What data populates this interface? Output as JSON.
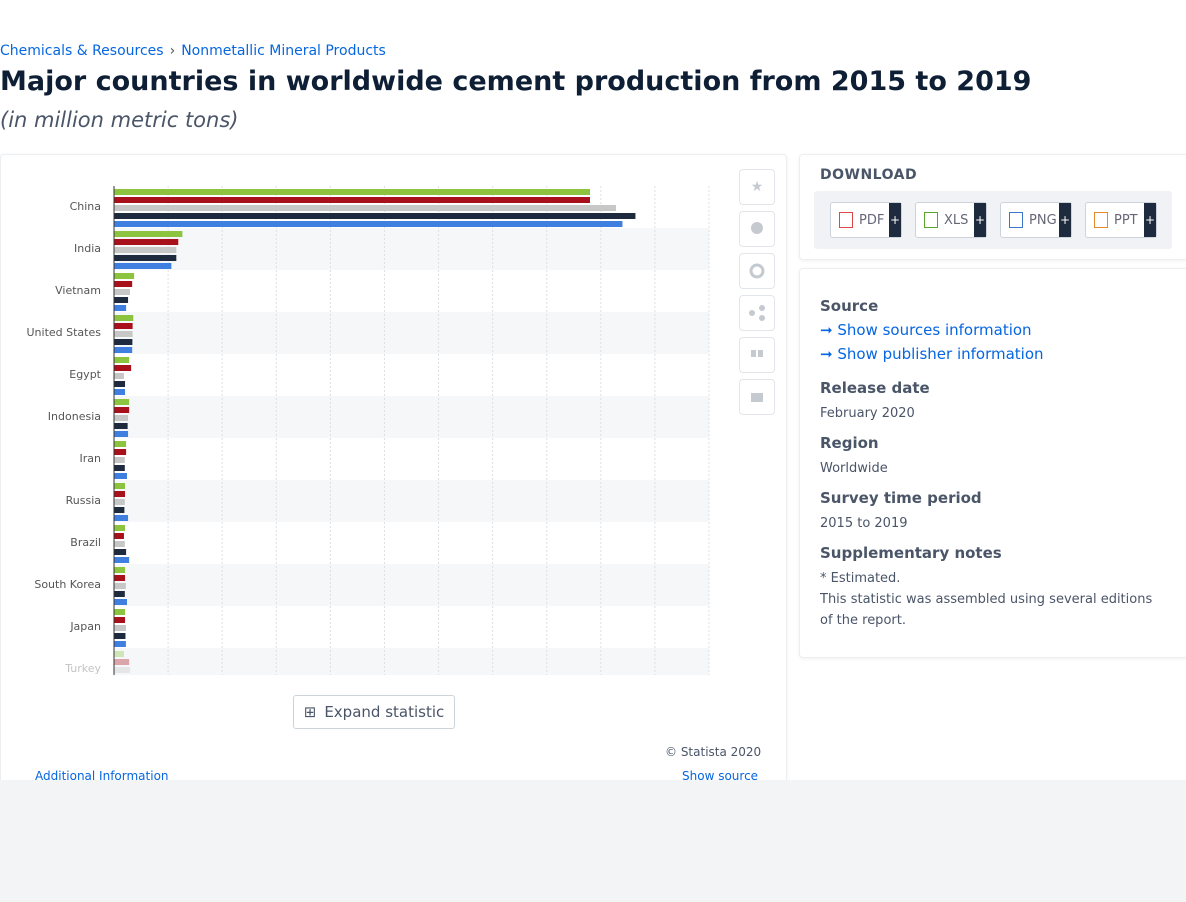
{
  "breadcrumb": [
    "Chemicals & Resources",
    "Nonmetallic Mineral Products"
  ],
  "title": "Major countries in worldwide cement production from 2015 to 2019",
  "subtitle": "(in million metric tons)",
  "chart_data": {
    "type": "bar",
    "orientation": "horizontal",
    "categories": [
      "China",
      "India",
      "Vietnam",
      "United States",
      "Egypt",
      "Indonesia",
      "Iran",
      "Russia",
      "Brazil",
      "South Korea",
      "Japan",
      "Turkey"
    ],
    "series": [
      {
        "color": "#8cc43f",
        "values": [
          2200,
          316,
          93,
          89,
          70,
          70,
          56,
          51,
          51,
          51,
          51,
          46
        ]
      },
      {
        "color": "#a8111b",
        "values": [
          2200,
          297,
          84,
          86,
          79,
          70,
          56,
          51,
          46,
          51,
          51,
          70
        ]
      },
      {
        "color": "#c7c7c7",
        "values": [
          2320,
          288,
          74,
          86,
          46,
          65,
          50,
          50,
          50,
          55,
          55,
          75
        ]
      },
      {
        "color": "#1e2a3d",
        "values": [
          2410,
          288,
          65,
          85,
          51,
          63,
          50,
          48,
          56,
          50,
          53,
          75
        ]
      },
      {
        "color": "#3f7fe0",
        "values": [
          2350,
          265,
          56,
          84,
          51,
          65,
          60,
          65,
          70,
          60,
          55,
          75
        ]
      }
    ],
    "xlim": [
      0,
      2750
    ],
    "xticks": [
      0,
      250,
      500,
      750,
      1000,
      1250,
      1500,
      1750,
      2000,
      2250,
      2500,
      2750
    ],
    "grid": true
  },
  "expand": "Expand statistic",
  "copyright": "© Statista 2020",
  "additional": "Additional Information",
  "show_source": "Show source",
  "download": {
    "title": "DOWNLOAD",
    "formats": [
      "PDF",
      "XLS",
      "PNG",
      "PPT"
    ],
    "plus": "+"
  },
  "info": {
    "source": "Source",
    "links": [
      "Show sources information",
      "Show publisher information"
    ],
    "sections": [
      {
        "heading": "Release date",
        "lines": [
          "February 2020"
        ]
      },
      {
        "heading": "Region",
        "lines": [
          "Worldwide"
        ]
      },
      {
        "heading": "Survey time period",
        "lines": [
          "2015 to 2019"
        ]
      },
      {
        "heading": "Supplementary notes",
        "lines": [
          "* Estimated.",
          "This statistic was assembled using several editions of the report."
        ]
      }
    ]
  }
}
